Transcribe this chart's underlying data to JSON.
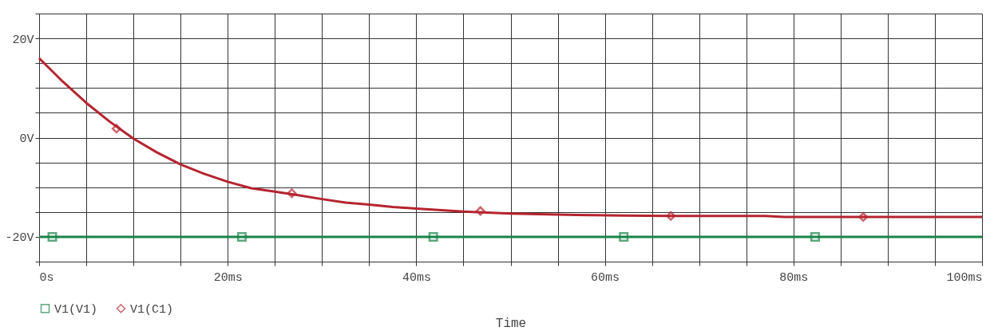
{
  "chart_data": {
    "type": "line",
    "xlabel": "Time",
    "xlim": [
      0,
      100
    ],
    "ylim": [
      -25,
      25
    ],
    "xticks": [
      {
        "value": 0,
        "label": "0s"
      },
      {
        "value": 5,
        "label": null
      },
      {
        "value": 10,
        "label": null
      },
      {
        "value": 15,
        "label": null
      },
      {
        "value": 20,
        "label": "20ms"
      },
      {
        "value": 25,
        "label": null
      },
      {
        "value": 30,
        "label": null
      },
      {
        "value": 35,
        "label": null
      },
      {
        "value": 40,
        "label": "40ms"
      },
      {
        "value": 45,
        "label": null
      },
      {
        "value": 50,
        "label": null
      },
      {
        "value": 55,
        "label": null
      },
      {
        "value": 60,
        "label": "60ms"
      },
      {
        "value": 65,
        "label": null
      },
      {
        "value": 70,
        "label": null
      },
      {
        "value": 75,
        "label": null
      },
      {
        "value": 80,
        "label": "80ms"
      },
      {
        "value": 85,
        "label": null
      },
      {
        "value": 90,
        "label": null
      },
      {
        "value": 95,
        "label": null
      },
      {
        "value": 100,
        "label": "100ms"
      }
    ],
    "yticks": [
      {
        "value": -25,
        "label": null
      },
      {
        "value": -20,
        "label": "-20V"
      },
      {
        "value": -15,
        "label": null
      },
      {
        "value": -10,
        "label": null
      },
      {
        "value": -5,
        "label": null
      },
      {
        "value": 0,
        "label": "0V"
      },
      {
        "value": 5,
        "label": null
      },
      {
        "value": 10,
        "label": null
      },
      {
        "value": 15,
        "label": null
      },
      {
        "value": 20,
        "label": "20V"
      },
      {
        "value": 25,
        "label": null
      }
    ],
    "grid": true,
    "legend": "bottom left",
    "series": [
      {
        "name": "V1(V1)",
        "color": "#1a8449",
        "x": [
          0,
          100
        ],
        "values": [
          -20,
          -20
        ]
      },
      {
        "name": "V1(C1)",
        "color": "#b5242f",
        "x": [
          0,
          2.5,
          5,
          7.5,
          10,
          12.5,
          15,
          17.5,
          20,
          22.5,
          25,
          27.5,
          30,
          32.5,
          35,
          37.5,
          40,
          45,
          50,
          55,
          57,
          62,
          67,
          72,
          77,
          79,
          85,
          90,
          100
        ],
        "values": [
          16,
          11.3,
          7.0,
          3.2,
          -0.2,
          -3.0,
          -5.4,
          -7.3,
          -8.9,
          -10.2,
          -10.9,
          -11.6,
          -12.4,
          -13.1,
          -13.5,
          -14.0,
          -14.3,
          -14.9,
          -15.3,
          -15.5,
          -15.6,
          -15.7,
          -15.8,
          -15.8,
          -15.8,
          -16.0,
          -16.0,
          -16.0,
          -16.0
        ]
      },
      {
        "type": "scatter",
        "marker": "square",
        "color": "#1a8449",
        "x": [
          1.4,
          21.5,
          41.8,
          62,
          82.3
        ],
        "values": [
          -20,
          -20,
          -20,
          -20,
          -20
        ]
      },
      {
        "type": "scatter",
        "marker": "diamond",
        "color": "#b5242f",
        "x": [
          8.2,
          26.8,
          46.8,
          67,
          87.4
        ],
        "values": [
          1.8,
          -11.2,
          -14.8,
          -15.8,
          -16.0
        ]
      }
    ]
  }
}
